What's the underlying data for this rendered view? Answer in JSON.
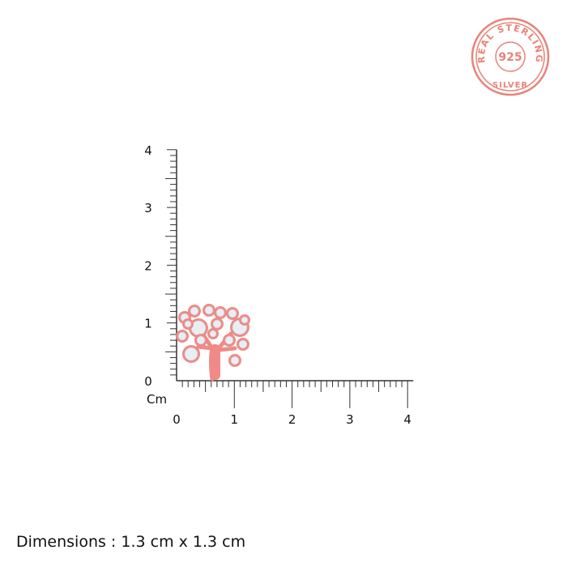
{
  "badge": {
    "top": "REAL STERLING",
    "center": "925",
    "bottom": "SILVER",
    "color": "#e8837a"
  },
  "ruler": {
    "unit_label": "Cm",
    "x_ticks": [
      "0",
      "1",
      "2",
      "3",
      "4"
    ],
    "y_ticks": [
      "0",
      "1",
      "2",
      "3",
      "4"
    ],
    "range_cm": [
      0,
      4
    ],
    "minor_per_cm": 10
  },
  "product": {
    "name": "tree-of-life-earring",
    "width_cm": 1.3,
    "height_cm": 1.3,
    "metal_color": "#f08a86",
    "stone_color": "#e9eef3"
  },
  "caption": "Dimensions : 1.3 cm x 1.3 cm"
}
